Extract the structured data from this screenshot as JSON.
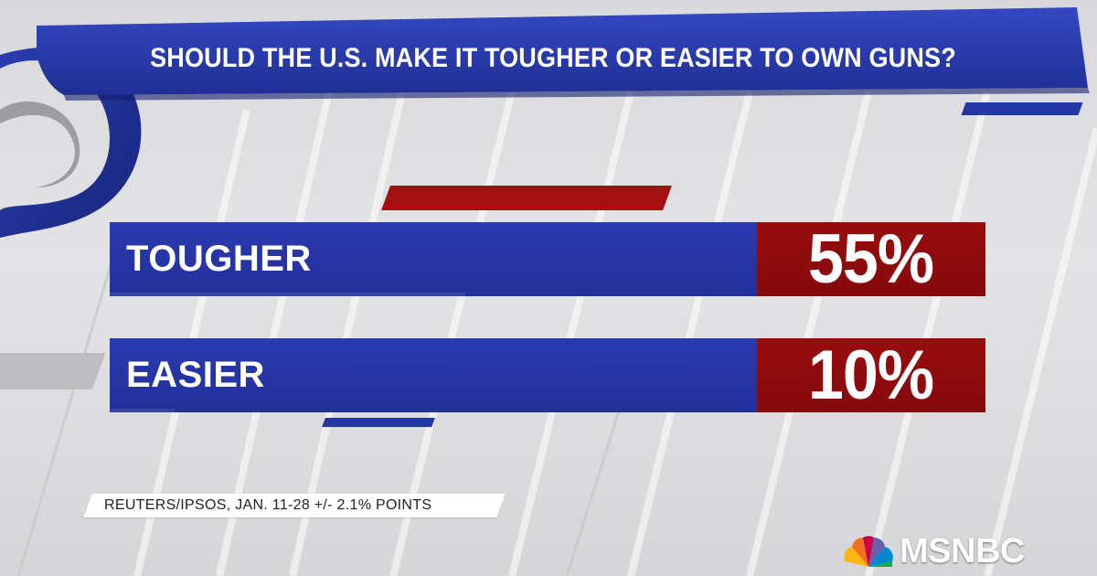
{
  "title": "SHOULD THE U.S. MAKE IT TOUGHER OR EASIER TO OWN GUNS?",
  "source": "REUTERS/IPSOS, JAN. 11-28 +/- 2.1% POINTS",
  "network": "MSNBC",
  "colors": {
    "banner_blue": "#2337a6",
    "bar_blue": "#2a3ab0",
    "value_red": "#980c0f",
    "background": "#dcdcde",
    "text": "#ffffff"
  },
  "icons": {
    "logo": "nbc-peacock-icon"
  },
  "chart_data": {
    "type": "bar",
    "orientation": "horizontal",
    "title": "SHOULD THE U.S. MAKE IT TOUGHER OR EASIER TO OWN GUNS?",
    "categories": [
      "TOUGHER",
      "EASIER"
    ],
    "values": [
      55,
      10
    ],
    "value_labels": [
      "55%",
      "10%"
    ],
    "unit": "%",
    "xlabel": "",
    "ylabel": "",
    "xlim": [
      0,
      100
    ],
    "grid": false,
    "legend": "none"
  }
}
